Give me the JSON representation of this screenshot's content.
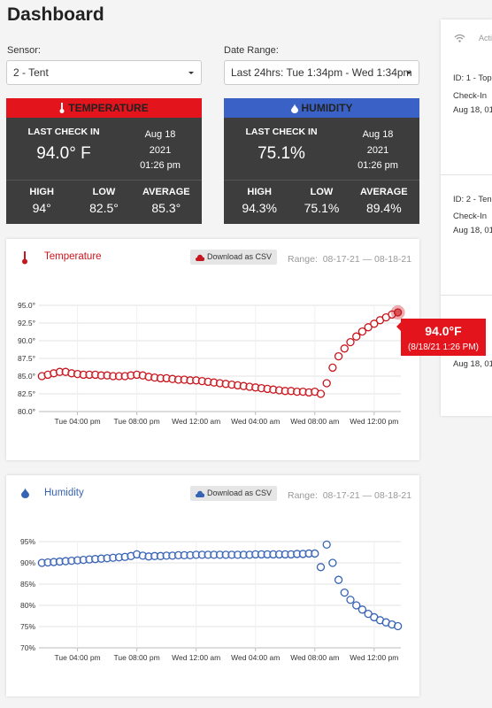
{
  "header": {
    "title": "Dashboard"
  },
  "filters": {
    "sensor_label": "Sensor:",
    "sensor_value": "2 - Tent",
    "range_label": "Date Range:",
    "range_value": "Last 24hrs: Tue 1:34pm - Wed 1:34pm"
  },
  "cards": [
    {
      "title": "TEMPERATURE",
      "last_label": "LAST CHECK IN",
      "last_value": "94.0° F",
      "date": "Aug 18",
      "year": "2021",
      "time": "01:26 pm",
      "stats": [
        {
          "label": "HIGH",
          "value": "94°"
        },
        {
          "label": "LOW",
          "value": "82.5°"
        },
        {
          "label": "AVERAGE",
          "value": "85.3°"
        }
      ]
    },
    {
      "title": "HUMIDITY",
      "last_label": "LAST CHECK IN",
      "last_value": "75.1%",
      "date": "Aug 18",
      "year": "2021",
      "time": "01:26 pm",
      "stats": [
        {
          "label": "HIGH",
          "value": "94.3%"
        },
        {
          "label": "LOW",
          "value": "75.1%"
        },
        {
          "label": "AVERAGE",
          "value": "89.4%"
        }
      ]
    }
  ],
  "activity": {
    "title": "Acti",
    "items": [
      {
        "id": "ID: 1 - Top",
        "status": "Check-In",
        "date": "Aug 18, 01"
      },
      {
        "id": "ID: 2 - Ten",
        "status": "Check-In",
        "date": "Aug 18, 01"
      },
      {
        "date": "Aug 18, 01"
      }
    ]
  },
  "chart_data": [
    {
      "type": "scatter",
      "title": "Temperature",
      "button": "Download as CSV",
      "range": "Range:  08-17-21 — 08-18-21",
      "color": "#c8161e",
      "grid": true,
      "x": [
        13.6,
        14.0,
        14.4,
        14.8,
        15.2,
        15.6,
        16.0,
        16.4,
        16.8,
        17.2,
        17.6,
        18.0,
        18.4,
        18.8,
        19.2,
        19.6,
        20.0,
        20.4,
        20.8,
        21.2,
        21.6,
        22.0,
        22.4,
        22.8,
        23.2,
        23.6,
        24.0,
        24.4,
        24.8,
        25.2,
        25.6,
        26.0,
        26.4,
        26.8,
        27.2,
        27.6,
        28.0,
        28.4,
        28.8,
        29.2,
        29.6,
        30.0,
        30.4,
        30.8,
        31.2,
        31.6,
        32.0,
        32.4,
        32.8,
        33.2,
        33.6,
        34.0,
        34.4,
        34.8,
        35.2,
        35.6,
        36.0,
        36.4,
        36.8,
        37.2,
        37.6
      ],
      "values": [
        85.0,
        85.2,
        85.4,
        85.6,
        85.6,
        85.4,
        85.3,
        85.2,
        85.2,
        85.2,
        85.1,
        85.1,
        85.0,
        85.0,
        85.0,
        85.1,
        85.2,
        85.1,
        84.9,
        84.8,
        84.7,
        84.7,
        84.6,
        84.5,
        84.5,
        84.4,
        84.4,
        84.3,
        84.2,
        84.1,
        84.0,
        83.9,
        83.8,
        83.7,
        83.6,
        83.5,
        83.4,
        83.3,
        83.2,
        83.1,
        83.0,
        82.9,
        82.9,
        82.8,
        82.8,
        82.7,
        82.8,
        82.5,
        84.0,
        86.2,
        87.8,
        88.9,
        89.8,
        90.6,
        91.3,
        91.9,
        92.4,
        92.9,
        93.3,
        93.7,
        94.0
      ],
      "xlim": [
        13.4,
        37.8
      ],
      "xticks": [
        {
          "value": 16,
          "label": "Tue 04:00 pm"
        },
        {
          "value": 20,
          "label": "Tue 08:00 pm"
        },
        {
          "value": 24,
          "label": "Wed 12:00 am"
        },
        {
          "value": 28,
          "label": "Wed 04:00 am"
        },
        {
          "value": 32,
          "label": "Wed 08:00 am"
        },
        {
          "value": 36,
          "label": "Wed 12:00 pm"
        }
      ],
      "ylim": [
        80,
        95
      ],
      "yticks": [
        {
          "value": 80,
          "label": "80.0°"
        },
        {
          "value": 82.5,
          "label": "82.5°"
        },
        {
          "value": 85,
          "label": "85.0°"
        },
        {
          "value": 87.5,
          "label": "87.5°"
        },
        {
          "value": 90,
          "label": "90.0°"
        },
        {
          "value": 92.5,
          "label": "92.5°"
        },
        {
          "value": 95,
          "label": "95.0°"
        }
      ],
      "tooltip": {
        "value": "94.0°F",
        "time": "(8/18/21 1:26 PM)"
      }
    },
    {
      "type": "scatter",
      "title": "Humidity",
      "button": "Download as CSV",
      "range": "Range:  08-17-21 — 08-18-21",
      "color": "#3763b5",
      "grid": true,
      "x": [
        13.6,
        14.0,
        14.4,
        14.8,
        15.2,
        15.6,
        16.0,
        16.4,
        16.8,
        17.2,
        17.6,
        18.0,
        18.4,
        18.8,
        19.2,
        19.6,
        20.0,
        20.4,
        20.8,
        21.2,
        21.6,
        22.0,
        22.4,
        22.8,
        23.2,
        23.6,
        24.0,
        24.4,
        24.8,
        25.2,
        25.6,
        26.0,
        26.4,
        26.8,
        27.2,
        27.6,
        28.0,
        28.4,
        28.8,
        29.2,
        29.6,
        30.0,
        30.4,
        30.8,
        31.2,
        31.6,
        32.0,
        32.4,
        32.8,
        33.2,
        33.6,
        34.0,
        34.4,
        34.8,
        35.2,
        35.6,
        36.0,
        36.4,
        36.8,
        37.2,
        37.6
      ],
      "values": [
        90.0,
        90.1,
        90.2,
        90.3,
        90.4,
        90.5,
        90.6,
        90.7,
        90.8,
        90.9,
        91.0,
        91.1,
        91.2,
        91.3,
        91.4,
        91.6,
        92.0,
        91.7,
        91.5,
        91.6,
        91.6,
        91.7,
        91.7,
        91.8,
        91.8,
        91.8,
        91.9,
        91.9,
        91.9,
        91.9,
        91.9,
        91.9,
        91.9,
        91.9,
        91.9,
        91.9,
        92.0,
        92.0,
        92.0,
        92.0,
        92.0,
        92.0,
        92.0,
        92.1,
        92.1,
        92.2,
        92.2,
        89.0,
        94.3,
        90.0,
        86.0,
        83.0,
        81.3,
        80.0,
        79.0,
        78.0,
        77.2,
        76.5,
        76.0,
        75.5,
        75.1
      ],
      "xlim": [
        13.4,
        37.8
      ],
      "xticks": [
        {
          "value": 16,
          "label": "Tue 04:00 pm"
        },
        {
          "value": 20,
          "label": "Tue 08:00 pm"
        },
        {
          "value": 24,
          "label": "Wed 12:00 am"
        },
        {
          "value": 28,
          "label": "Wed 04:00 am"
        },
        {
          "value": 32,
          "label": "Wed 08:00 am"
        },
        {
          "value": 36,
          "label": "Wed 12:00 pm"
        }
      ],
      "ylim": [
        70,
        95
      ],
      "yticks": [
        {
          "value": 70,
          "label": "70%"
        },
        {
          "value": 75,
          "label": "75%"
        },
        {
          "value": 80,
          "label": "80%"
        },
        {
          "value": 85,
          "label": "85%"
        },
        {
          "value": 90,
          "label": "90%"
        },
        {
          "value": 95,
          "label": "95%"
        }
      ]
    }
  ]
}
